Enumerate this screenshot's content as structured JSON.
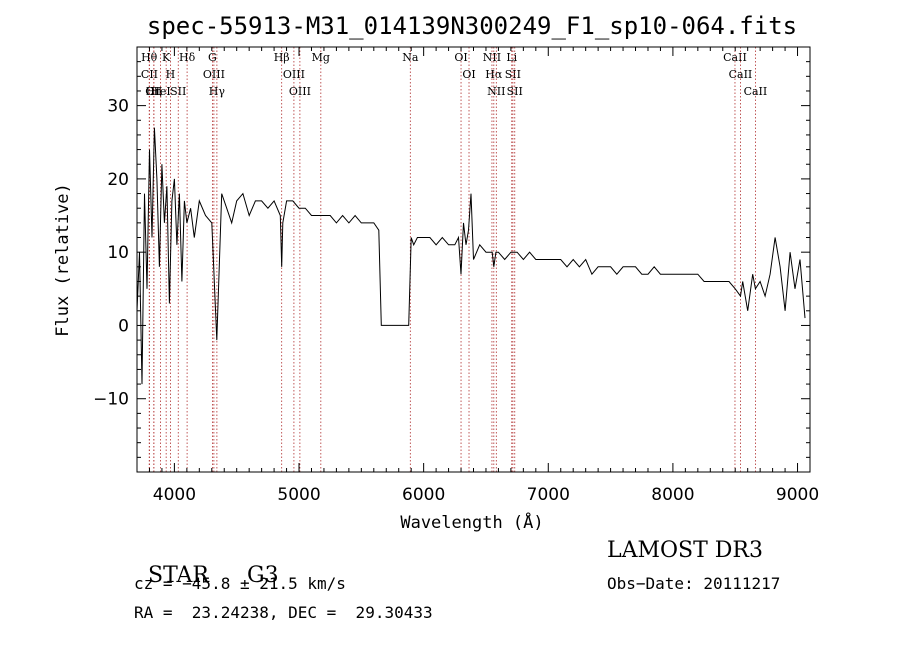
{
  "chart_data": {
    "type": "line",
    "title": "spec-55913-M31_014139N300249_F1_sp10-064.fits",
    "xlabel": "Wavelength (Å)",
    "ylabel": "Flux (relative)",
    "xlim": [
      3700,
      9100
    ],
    "ylim": [
      -20,
      38
    ],
    "xticks": [
      4000,
      5000,
      6000,
      7000,
      8000,
      9000
    ],
    "yticks": [
      -10,
      0,
      10,
      20,
      30
    ],
    "x": [
      3700,
      3720,
      3740,
      3760,
      3780,
      3800,
      3820,
      3840,
      3860,
      3880,
      3900,
      3920,
      3940,
      3960,
      3980,
      4000,
      4020,
      4040,
      4060,
      4080,
      4100,
      4130,
      4160,
      4200,
      4250,
      4300,
      4340,
      4380,
      4420,
      4460,
      4500,
      4550,
      4600,
      4650,
      4700,
      4750,
      4800,
      4850,
      4861,
      4870,
      4900,
      4950,
      5000,
      5050,
      5100,
      5150,
      5200,
      5250,
      5300,
      5350,
      5400,
      5450,
      5500,
      5550,
      5600,
      5640,
      5660,
      5680,
      5700,
      5800,
      5880,
      5900,
      5920,
      5950,
      6000,
      6050,
      6100,
      6150,
      6200,
      6250,
      6280,
      6300,
      6320,
      6340,
      6360,
      6380,
      6400,
      6450,
      6500,
      6550,
      6563,
      6580,
      6600,
      6650,
      6700,
      6750,
      6800,
      6850,
      6900,
      6950,
      7000,
      7050,
      7100,
      7150,
      7200,
      7250,
      7300,
      7350,
      7400,
      7450,
      7500,
      7550,
      7600,
      7650,
      7700,
      7750,
      7800,
      7850,
      7900,
      7950,
      8000,
      8050,
      8100,
      8150,
      8200,
      8250,
      8300,
      8350,
      8400,
      8450,
      8500,
      8542,
      8560,
      8600,
      8640,
      8662,
      8700,
      8740,
      8780,
      8820,
      8860,
      8900,
      8940,
      8980,
      9020,
      9060
    ],
    "y": [
      2,
      10,
      -8,
      18,
      5,
      24,
      12,
      27,
      20,
      8,
      22,
      14,
      19,
      3,
      17,
      20,
      11,
      18,
      6,
      17,
      14,
      16,
      12,
      17,
      15,
      14,
      -2,
      18,
      16,
      14,
      17,
      18,
      15,
      17,
      17,
      16,
      17,
      15,
      8,
      14,
      17,
      17,
      16,
      16,
      15,
      15,
      15,
      15,
      14,
      15,
      14,
      15,
      14,
      14,
      14,
      13,
      0,
      0,
      0,
      0,
      0,
      12,
      11,
      12,
      12,
      12,
      11,
      12,
      11,
      11,
      12,
      7,
      14,
      11,
      13,
      18,
      9,
      11,
      10,
      10,
      8,
      10,
      10,
      9,
      10,
      10,
      9,
      10,
      9,
      9,
      9,
      9,
      9,
      8,
      9,
      8,
      9,
      7,
      8,
      8,
      8,
      7,
      8,
      8,
      8,
      7,
      7,
      8,
      7,
      7,
      7,
      7,
      7,
      7,
      7,
      6,
      6,
      6,
      6,
      6,
      5,
      4,
      6,
      2,
      7,
      5,
      6,
      4,
      7,
      12,
      8,
      2,
      10,
      5,
      9,
      1
    ],
    "lines": [
      {
        "label": "Hθ",
        "x": 3798
      },
      {
        "label": "CII",
        "x": 3800
      },
      {
        "label": "CII",
        "x": 3835
      },
      {
        "label": "Hη",
        "x": 3835
      },
      {
        "label": "K",
        "x": 3934
      },
      {
        "label": "HeI",
        "x": 3889
      },
      {
        "label": "H",
        "x": 3968
      },
      {
        "label": "SII",
        "x": 4031
      },
      {
        "label": "Hδ",
        "x": 4102
      },
      {
        "label": "OIII",
        "x": 4317
      },
      {
        "label": "Hγ",
        "x": 4341
      },
      {
        "label": "G",
        "x": 4305
      },
      {
        "label": "OIII",
        "x": 4959
      },
      {
        "label": "OIII",
        "x": 5007
      },
      {
        "label": "Hβ",
        "x": 4861
      },
      {
        "label": "Mg",
        "x": 5175
      },
      {
        "label": "Na",
        "x": 5893
      },
      {
        "label": "OI",
        "x": 6300
      },
      {
        "label": "OI",
        "x": 6364
      },
      {
        "label": "Hα",
        "x": 6563
      },
      {
        "label": "NII",
        "x": 6548
      },
      {
        "label": "NII",
        "x": 6583
      },
      {
        "label": "SII",
        "x": 6716
      },
      {
        "label": "Li",
        "x": 6707
      },
      {
        "label": "SII",
        "x": 6731
      },
      {
        "label": "CaII",
        "x": 8542
      },
      {
        "label": "CaII",
        "x": 8498
      },
      {
        "label": "CaII",
        "x": 8662
      }
    ]
  },
  "info": {
    "class": "STAR",
    "subclass": "G3",
    "survey": "LAMOST DR3",
    "cz": "cz = −45.8 ± 21.5 km/s",
    "obs_date": "Obs−Date: 20111217",
    "radec": "RA =  23.24238, DEC =  29.30433"
  }
}
